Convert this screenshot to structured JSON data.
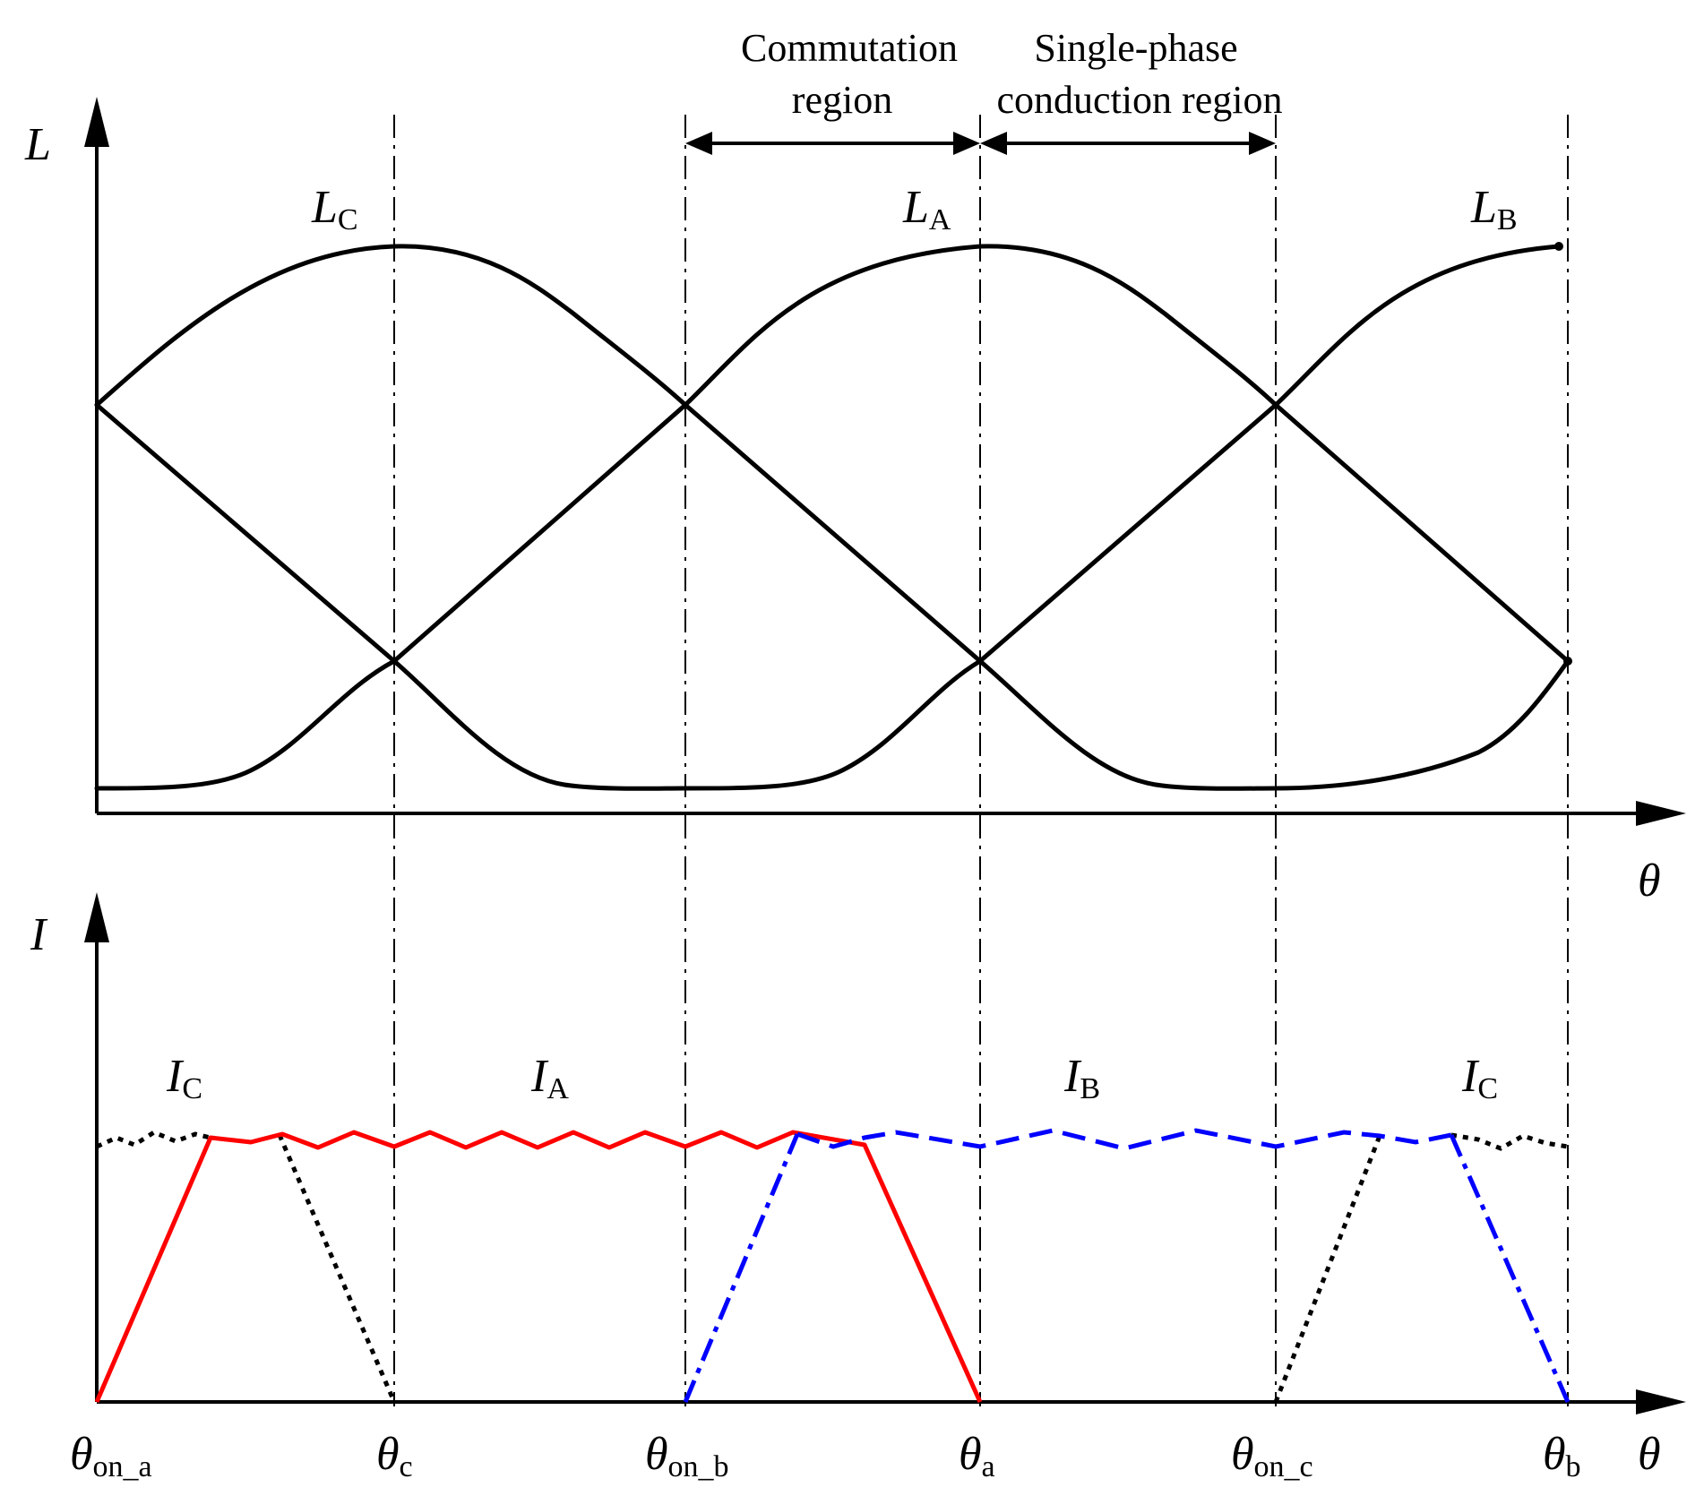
{
  "top_plot": {
    "y_axis_label": "L",
    "x_axis_label": "θ",
    "curve_labels": [
      {
        "main": "L",
        "sub": "C"
      },
      {
        "main": "L",
        "sub": "A"
      },
      {
        "main": "L",
        "sub": "B"
      }
    ]
  },
  "bottom_plot": {
    "y_axis_label": "I",
    "x_axis_label": "θ",
    "curve_labels": [
      {
        "main": "I",
        "sub": "C"
      },
      {
        "main": "I",
        "sub": "A"
      },
      {
        "main": "I",
        "sub": "B"
      },
      {
        "main": "I",
        "sub": "C"
      }
    ]
  },
  "regions": {
    "commutation": {
      "line1": "Commutation",
      "line2": "region"
    },
    "single_phase": {
      "line1": "Single-phase",
      "line2": "conduction region"
    }
  },
  "angle_labels": [
    {
      "main": "θ",
      "sub": "on_a"
    },
    {
      "main": "θ",
      "sub": "c"
    },
    {
      "main": "θ",
      "sub": "on_b"
    },
    {
      "main": "θ",
      "sub": "a"
    },
    {
      "main": "θ",
      "sub": "on_c"
    },
    {
      "main": "θ",
      "sub": "b"
    }
  ],
  "colors": {
    "phase_a": "#ff0000",
    "phase_b": "#0000ff",
    "phase_c": "#000000",
    "inductance": "#000000"
  }
}
